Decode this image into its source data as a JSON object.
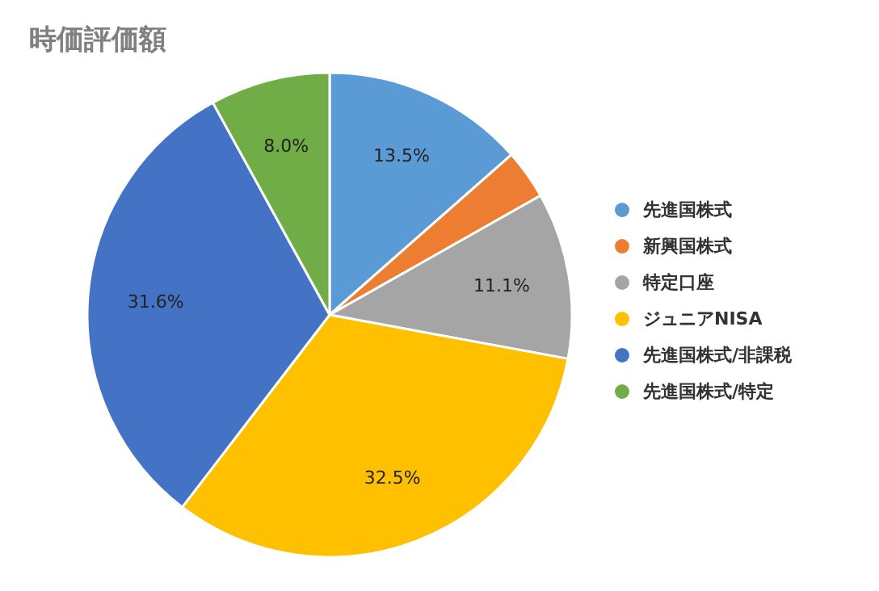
{
  "chart_data": {
    "type": "pie",
    "title": "時価評価額",
    "categories": [
      "先進国株式",
      "新興国株式",
      "特定口座",
      "ジュニアNISA",
      "先進国株式/非課税",
      "先進国株式/特定"
    ],
    "values": [
      13.5,
      3.3,
      11.1,
      32.5,
      31.6,
      8.0
    ],
    "colors": [
      "#5b9bd5",
      "#ed7d31",
      "#a5a5a5",
      "#ffc000",
      "#4472c4",
      "#70ad47"
    ],
    "value_labels": [
      "13.5%",
      null,
      "11.1%",
      "32.5%",
      "31.6%",
      "8.0%"
    ],
    "legend": "right"
  }
}
